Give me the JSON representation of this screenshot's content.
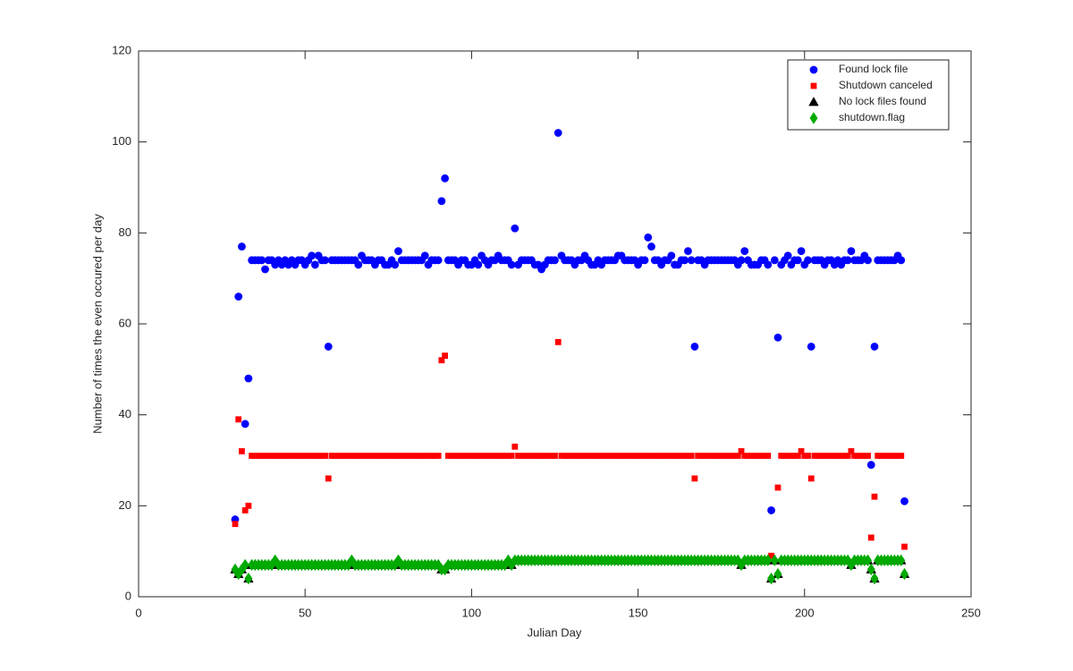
{
  "chart_data": {
    "type": "scatter",
    "xlabel": "Julian Day",
    "ylabel": "Number of times the even occured per day",
    "xlim": [
      0,
      250
    ],
    "xticks": [
      0,
      50,
      100,
      150,
      200,
      250
    ],
    "ylim": [
      0,
      120
    ],
    "yticks": [
      0,
      20,
      40,
      60,
      80,
      100,
      120
    ],
    "grid": false,
    "legend": "northeast",
    "x": [
      29,
      30,
      31,
      32,
      33,
      34,
      35,
      36,
      37,
      38,
      39,
      40,
      41,
      42,
      43,
      44,
      45,
      46,
      47,
      48,
      49,
      50,
      51,
      52,
      53,
      54,
      55,
      56,
      57,
      58,
      59,
      60,
      61,
      62,
      63,
      64,
      65,
      66,
      67,
      68,
      69,
      70,
      71,
      72,
      73,
      74,
      75,
      76,
      77,
      78,
      79,
      80,
      81,
      82,
      83,
      84,
      85,
      86,
      87,
      88,
      89,
      90,
      91,
      92,
      93,
      94,
      95,
      96,
      97,
      98,
      99,
      100,
      101,
      102,
      103,
      104,
      105,
      106,
      107,
      108,
      109,
      110,
      111,
      112,
      113,
      114,
      115,
      116,
      117,
      118,
      119,
      120,
      121,
      122,
      123,
      124,
      125,
      126,
      127,
      128,
      129,
      130,
      131,
      132,
      133,
      134,
      135,
      136,
      137,
      138,
      139,
      140,
      141,
      142,
      143,
      144,
      145,
      146,
      147,
      148,
      149,
      150,
      151,
      152,
      153,
      154,
      155,
      156,
      157,
      158,
      159,
      160,
      161,
      162,
      163,
      164,
      165,
      166,
      167,
      168,
      169,
      170,
      171,
      172,
      173,
      174,
      175,
      176,
      177,
      178,
      179,
      180,
      181,
      182,
      183,
      184,
      185,
      186,
      187,
      188,
      189,
      190,
      191,
      192,
      193,
      194,
      195,
      196,
      197,
      198,
      199,
      200,
      201,
      202,
      203,
      204,
      205,
      206,
      207,
      208,
      209,
      210,
      211,
      212,
      213,
      214,
      215,
      216,
      217,
      218,
      219,
      220,
      221,
      222,
      223,
      224,
      225,
      226,
      227,
      228,
      229,
      230
    ],
    "series": [
      {
        "name": "Found lock file",
        "color": "#0000ff",
        "marker": "circle",
        "values": [
          17,
          66,
          77,
          38,
          48,
          74,
          74,
          74,
          74,
          72,
          74,
          74,
          73,
          74,
          73,
          74,
          73,
          74,
          73,
          74,
          74,
          73,
          74,
          75,
          73,
          75,
          74,
          74,
          55,
          74,
          74,
          74,
          74,
          74,
          74,
          74,
          74,
          73,
          75,
          74,
          74,
          74,
          73,
          74,
          74,
          73,
          73,
          74,
          73,
          76,
          74,
          74,
          74,
          74,
          74,
          74,
          74,
          75,
          73,
          74,
          74,
          74,
          87,
          92,
          74,
          74,
          74,
          73,
          74,
          74,
          73,
          73,
          74,
          73,
          75,
          74,
          73,
          74,
          74,
          75,
          74,
          74,
          74,
          73,
          81,
          73,
          74,
          74,
          74,
          74,
          73,
          73,
          72,
          73,
          74,
          74,
          74,
          102,
          75,
          74,
          74,
          74,
          73,
          74,
          74,
          75,
          74,
          73,
          73,
          74,
          73,
          74,
          74,
          74,
          74,
          75,
          75,
          74,
          74,
          74,
          74,
          73,
          74,
          74,
          79,
          77,
          74,
          74,
          73,
          74,
          74,
          75,
          73,
          73,
          74,
          74,
          76,
          74,
          55,
          74,
          74,
          73,
          74,
          74,
          74,
          74,
          74,
          74,
          74,
          74,
          74,
          73,
          74,
          76,
          74,
          73,
          73,
          73,
          74,
          74,
          73,
          19,
          74,
          57,
          73,
          74,
          75,
          73,
          74,
          74,
          76,
          73,
          74,
          55,
          74,
          74,
          74,
          73,
          74,
          74,
          73,
          74,
          73,
          74,
          74,
          76,
          74,
          74,
          74,
          75,
          74,
          29,
          55,
          74,
          74,
          74,
          74,
          74,
          74,
          75,
          74,
          21
        ]
      },
      {
        "name": "Shutdown canceled",
        "color": "#ff0000",
        "marker": "square",
        "values": [
          16,
          39,
          32,
          19,
          20,
          31,
          31,
          31,
          31,
          31,
          31,
          31,
          31,
          31,
          31,
          31,
          31,
          31,
          31,
          31,
          31,
          31,
          31,
          31,
          31,
          31,
          31,
          31,
          26,
          31,
          31,
          31,
          31,
          31,
          31,
          31,
          31,
          31,
          31,
          31,
          31,
          31,
          31,
          31,
          31,
          31,
          31,
          31,
          31,
          31,
          31,
          31,
          31,
          31,
          31,
          31,
          31,
          31,
          31,
          31,
          31,
          31,
          52,
          53,
          31,
          31,
          31,
          31,
          31,
          31,
          31,
          31,
          31,
          31,
          31,
          31,
          31,
          31,
          31,
          31,
          31,
          31,
          31,
          31,
          33,
          31,
          31,
          31,
          31,
          31,
          31,
          31,
          31,
          31,
          31,
          31,
          31,
          56,
          31,
          31,
          31,
          31,
          31,
          31,
          31,
          31,
          31,
          31,
          31,
          31,
          31,
          31,
          31,
          31,
          31,
          31,
          31,
          31,
          31,
          31,
          31,
          31,
          31,
          31,
          31,
          31,
          31,
          31,
          31,
          31,
          31,
          31,
          31,
          31,
          31,
          31,
          31,
          31,
          26,
          31,
          31,
          31,
          31,
          31,
          31,
          31,
          31,
          31,
          31,
          31,
          31,
          31,
          32,
          31,
          31,
          31,
          31,
          31,
          31,
          31,
          31,
          9,
          null,
          24,
          31,
          31,
          31,
          31,
          31,
          31,
          32,
          31,
          31,
          26,
          31,
          31,
          31,
          31,
          31,
          31,
          31,
          31,
          31,
          31,
          31,
          32,
          31,
          31,
          31,
          31,
          31,
          13,
          22,
          31,
          31,
          31,
          31,
          31,
          31,
          31,
          31,
          11
        ]
      },
      {
        "name": "No lock files found",
        "color": "#000000",
        "marker": "triangle",
        "values": [
          6,
          5,
          6,
          7,
          4,
          7,
          7,
          7,
          7,
          7,
          7,
          7,
          8,
          7,
          7,
          7,
          7,
          7,
          7,
          7,
          7,
          7,
          7,
          7,
          7,
          7,
          7,
          7,
          7,
          7,
          7,
          7,
          7,
          7,
          7,
          8,
          7,
          7,
          7,
          7,
          7,
          7,
          7,
          7,
          7,
          7,
          7,
          7,
          7,
          8,
          7,
          7,
          7,
          7,
          7,
          7,
          7,
          7,
          7,
          7,
          7,
          7,
          6,
          6,
          7,
          7,
          7,
          7,
          7,
          7,
          7,
          7,
          7,
          7,
          7,
          7,
          7,
          7,
          7,
          7,
          7,
          7,
          8,
          7,
          8,
          8,
          8,
          8,
          8,
          8,
          8,
          8,
          8,
          8,
          8,
          8,
          8,
          8,
          8,
          8,
          8,
          8,
          8,
          8,
          8,
          8,
          8,
          8,
          8,
          8,
          8,
          8,
          8,
          8,
          8,
          8,
          8,
          8,
          8,
          8,
          8,
          8,
          8,
          8,
          8,
          8,
          8,
          8,
          8,
          8,
          8,
          8,
          8,
          8,
          8,
          8,
          8,
          8,
          8,
          8,
          8,
          8,
          8,
          8,
          8,
          8,
          8,
          8,
          8,
          8,
          8,
          8,
          7,
          8,
          8,
          8,
          8,
          8,
          8,
          8,
          8,
          4,
          8,
          5,
          8,
          8,
          8,
          8,
          8,
          8,
          8,
          8,
          8,
          8,
          8,
          8,
          8,
          8,
          8,
          8,
          8,
          8,
          8,
          8,
          8,
          7,
          8,
          8,
          8,
          8,
          8,
          6,
          4,
          8,
          8,
          8,
          8,
          8,
          8,
          8,
          8,
          5
        ]
      },
      {
        "name": "shutdown.flag",
        "color": "#00aa00",
        "marker": "diamond",
        "values": [
          6,
          5,
          6,
          7,
          4,
          7,
          7,
          7,
          7,
          7,
          7,
          7,
          8,
          7,
          7,
          7,
          7,
          7,
          7,
          7,
          7,
          7,
          7,
          7,
          7,
          7,
          7,
          7,
          7,
          7,
          7,
          7,
          7,
          7,
          7,
          8,
          7,
          7,
          7,
          7,
          7,
          7,
          7,
          7,
          7,
          7,
          7,
          7,
          7,
          8,
          7,
          7,
          7,
          7,
          7,
          7,
          7,
          7,
          7,
          7,
          7,
          7,
          6,
          6,
          7,
          7,
          7,
          7,
          7,
          7,
          7,
          7,
          7,
          7,
          7,
          7,
          7,
          7,
          7,
          7,
          7,
          7,
          8,
          7,
          8,
          8,
          8,
          8,
          8,
          8,
          8,
          8,
          8,
          8,
          8,
          8,
          8,
          8,
          8,
          8,
          8,
          8,
          8,
          8,
          8,
          8,
          8,
          8,
          8,
          8,
          8,
          8,
          8,
          8,
          8,
          8,
          8,
          8,
          8,
          8,
          8,
          8,
          8,
          8,
          8,
          8,
          8,
          8,
          8,
          8,
          8,
          8,
          8,
          8,
          8,
          8,
          8,
          8,
          8,
          8,
          8,
          8,
          8,
          8,
          8,
          8,
          8,
          8,
          8,
          8,
          8,
          8,
          7,
          8,
          8,
          8,
          8,
          8,
          8,
          8,
          8,
          4,
          8,
          5,
          8,
          8,
          8,
          8,
          8,
          8,
          8,
          8,
          8,
          8,
          8,
          8,
          8,
          8,
          8,
          8,
          8,
          8,
          8,
          8,
          8,
          7,
          8,
          8,
          8,
          8,
          8,
          6,
          4,
          8,
          8,
          8,
          8,
          8,
          8,
          8,
          8,
          5
        ]
      }
    ]
  }
}
